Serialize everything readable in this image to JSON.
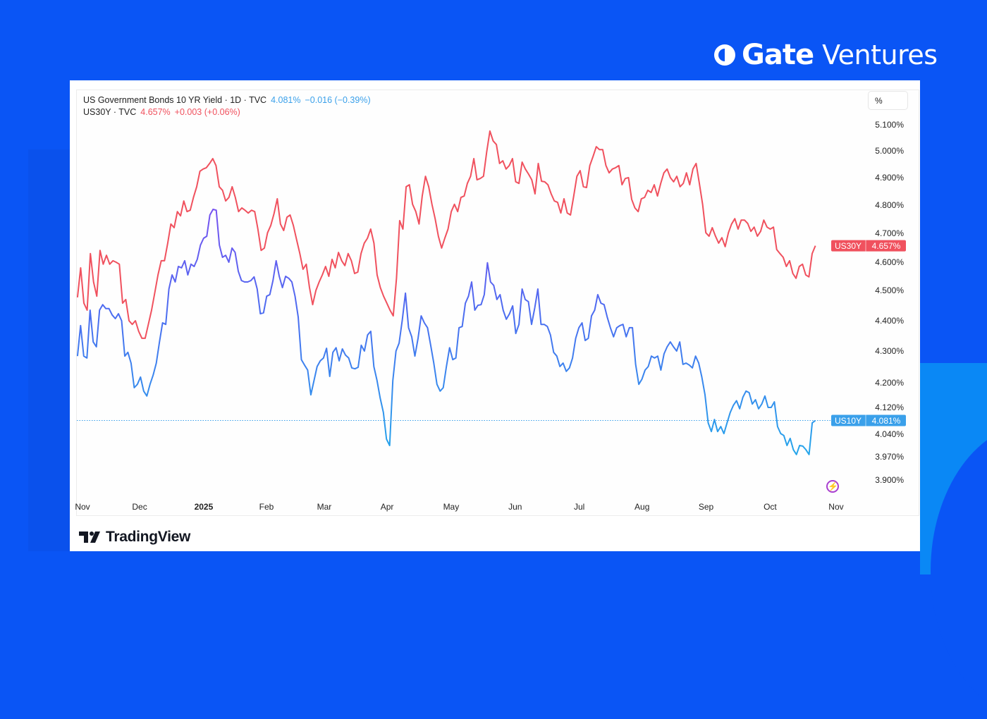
{
  "brand": {
    "name_bold": "Gate",
    "name_light": "Ventures",
    "colors": {
      "background": "#0a55f5",
      "accent_light": "#0a88f5"
    }
  },
  "source": {
    "name": "TradingView"
  },
  "unit_button": "%",
  "legend": [
    {
      "label": "US Government Bonds 10 YR Yield · 1D · TVC",
      "price": "4.081%",
      "change": "−0.016 (−0.39%)",
      "color": "#3aa0ea"
    },
    {
      "label": "US30Y · TVC",
      "price": "4.657%",
      "change": "+0.003 (+0.06%)",
      "color": "#f0515e"
    }
  ],
  "price_tags": [
    {
      "symbol": "US30Y",
      "value": "4.657%",
      "color": "#f0515e"
    },
    {
      "symbol": "US10Y",
      "value": "4.081%",
      "color": "#3aa0ea"
    }
  ],
  "chart_data": {
    "type": "line",
    "title": "US Government Bonds 10 YR Yield vs US30Y",
    "xlabel": "",
    "ylabel": "%",
    "x_unit": "months since Nov 2024",
    "x_range": [
      -0.08,
      11.67
    ],
    "x_ticks": [
      {
        "label": "Nov",
        "t": 0
      },
      {
        "label": "Dec",
        "t": 0.91
      },
      {
        "label": "2025",
        "t": 1.93,
        "bold": true
      },
      {
        "label": "Feb",
        "t": 2.93
      },
      {
        "label": "Mar",
        "t": 3.85
      },
      {
        "label": "Apr",
        "t": 4.85
      },
      {
        "label": "May",
        "t": 5.87
      },
      {
        "label": "Jun",
        "t": 6.89
      },
      {
        "label": "Jul",
        "t": 7.91
      },
      {
        "label": "Aug",
        "t": 8.91
      },
      {
        "label": "Sep",
        "t": 9.93
      },
      {
        "label": "Oct",
        "t": 10.95
      },
      {
        "label": "Nov",
        "t": 12.0
      }
    ],
    "y_ticks": [
      5.1,
      5.0,
      4.9,
      4.8,
      4.7,
      4.6,
      4.5,
      4.4,
      4.3,
      4.2,
      4.12,
      4.04,
      3.97,
      3.9
    ],
    "y_tick_labels": [
      "5.100%",
      "5.000%",
      "4.900%",
      "4.800%",
      "4.700%",
      "4.600%",
      "4.500%",
      "4.400%",
      "4.300%",
      "4.200%",
      "4.120%",
      "4.040%",
      "3.970%",
      "3.900%"
    ],
    "grid": false,
    "series": [
      {
        "name": "US30Y",
        "color": "#f0515e",
        "values": [
          4.477,
          4.58,
          4.458,
          4.435,
          4.63,
          4.53,
          4.481,
          4.641,
          4.593,
          4.624,
          4.593,
          4.605,
          4.6,
          4.593,
          4.458,
          4.47,
          4.4,
          4.388,
          4.4,
          4.365,
          4.342,
          4.342,
          4.388,
          4.435,
          4.493,
          4.555,
          4.605,
          4.605,
          4.666,
          4.733,
          4.72,
          4.777,
          4.762,
          4.815,
          4.777,
          4.782,
          4.828,
          4.867,
          4.924,
          4.932,
          4.937,
          4.953,
          4.971,
          4.945,
          4.867,
          4.854,
          4.815,
          4.828,
          4.867,
          4.828,
          4.777,
          4.79,
          4.782,
          4.772,
          4.782,
          4.777,
          4.715,
          4.641,
          4.649,
          4.702,
          4.728,
          4.77,
          4.823,
          4.733,
          4.71,
          4.757,
          4.765,
          4.728,
          4.678,
          4.63,
          4.575,
          4.593,
          4.51,
          4.453,
          4.5,
          4.53,
          4.555,
          4.585,
          4.55,
          4.61,
          4.58,
          4.634,
          4.605,
          4.588,
          4.63,
          4.605,
          4.56,
          4.565,
          4.63,
          4.666,
          4.683,
          4.715,
          4.666,
          4.555,
          4.51,
          4.481,
          4.458,
          4.435,
          4.416,
          4.543,
          4.745,
          4.715,
          4.867,
          4.874,
          4.803,
          4.777,
          4.733,
          4.833,
          4.905,
          4.867,
          4.803,
          4.752,
          4.69,
          4.649,
          4.683,
          4.715,
          4.777,
          4.803,
          4.777,
          4.828,
          4.833,
          4.879,
          4.905,
          4.971,
          4.892,
          4.897,
          4.905,
          4.997,
          5.076,
          5.038,
          5.024,
          4.953,
          4.963,
          4.932,
          4.945,
          4.971,
          4.885,
          4.879,
          4.958,
          4.932,
          4.913,
          4.892,
          4.841,
          4.953,
          4.887,
          4.885,
          4.874,
          4.841,
          4.815,
          4.81,
          4.772,
          4.823,
          4.772,
          4.765,
          4.833,
          4.905,
          4.926,
          4.867,
          4.864,
          4.945,
          4.979,
          5.016,
          5.005,
          5.005,
          4.945,
          4.918,
          4.932,
          4.937,
          4.945,
          4.874,
          4.897,
          4.9,
          4.821,
          4.79,
          4.777,
          4.823,
          4.828,
          4.854,
          4.846,
          4.874,
          4.833,
          4.879,
          4.918,
          4.932,
          4.9,
          4.885,
          4.905,
          4.867,
          4.879,
          4.918,
          4.874,
          4.932,
          4.953,
          4.879,
          4.803,
          4.702,
          4.69,
          4.72,
          4.69,
          4.666,
          4.685,
          4.654,
          4.702,
          4.733,
          4.752,
          4.715,
          4.747,
          4.747,
          4.735,
          4.707,
          4.722,
          4.69,
          4.707,
          4.747,
          4.722,
          4.715,
          4.722,
          4.644,
          4.63,
          4.617,
          4.585,
          4.605,
          4.56,
          4.543,
          4.585,
          4.593,
          4.555,
          4.548,
          4.63,
          4.657
        ]
      },
      {
        "name": "US10Y",
        "color": "#3aa0ea",
        "gradient": [
          "#7b4ff0",
          "#4a6ef0",
          "#2aa4ea"
        ],
        "values": [
          4.284,
          4.384,
          4.284,
          4.278,
          4.435,
          4.33,
          4.314,
          4.435,
          4.453,
          4.44,
          4.44,
          4.419,
          4.407,
          4.423,
          4.4,
          4.284,
          4.296,
          4.262,
          4.184,
          4.195,
          4.218,
          4.173,
          4.157,
          4.195,
          4.224,
          4.262,
          4.33,
          4.393,
          4.388,
          4.505,
          4.555,
          4.53,
          4.585,
          4.58,
          4.605,
          4.555,
          4.593,
          4.585,
          4.61,
          4.659,
          4.683,
          4.69,
          4.765,
          4.785,
          4.782,
          4.659,
          4.617,
          4.624,
          4.6,
          4.649,
          4.634,
          4.568,
          4.535,
          4.53,
          4.53,
          4.535,
          4.548,
          4.505,
          4.423,
          4.426,
          4.481,
          4.486,
          4.535,
          4.605,
          4.55,
          4.51,
          4.55,
          4.543,
          4.53,
          4.481,
          4.412,
          4.273,
          4.256,
          4.24,
          4.161,
          4.207,
          4.251,
          4.269,
          4.278,
          4.309,
          4.22,
          4.296,
          4.311,
          4.269,
          4.307,
          4.287,
          4.278,
          4.247,
          4.244,
          4.249,
          4.319,
          4.3,
          4.353,
          4.365,
          4.251,
          4.207,
          4.15,
          4.105,
          4.025,
          4.005,
          4.207,
          4.3,
          4.326,
          4.402,
          4.491,
          4.377,
          4.347,
          4.284,
          4.342,
          4.416,
          4.393,
          4.377,
          4.319,
          4.262,
          4.195,
          4.173,
          4.184,
          4.251,
          4.311,
          4.273,
          4.278,
          4.377,
          4.381,
          4.458,
          4.481,
          4.53,
          4.435,
          4.451,
          4.453,
          4.486,
          4.598,
          4.53,
          4.518,
          4.47,
          4.486,
          4.435,
          4.405,
          4.423,
          4.449,
          4.358,
          4.388,
          4.505,
          4.47,
          4.463,
          4.388,
          4.442,
          4.505,
          4.388,
          4.388,
          4.381,
          4.353,
          4.296,
          4.284,
          4.251,
          4.262,
          4.236,
          4.247,
          4.278,
          4.342,
          4.377,
          4.393,
          4.335,
          4.342,
          4.416,
          4.435,
          4.486,
          4.458,
          4.453,
          4.412,
          4.377,
          4.347,
          4.377,
          4.384,
          4.388,
          4.347,
          4.377,
          4.377,
          4.258,
          4.195,
          4.211,
          4.24,
          4.251,
          4.284,
          4.278,
          4.284,
          4.24,
          4.291,
          4.314,
          4.33,
          4.314,
          4.3,
          4.33,
          4.258,
          4.262,
          4.256,
          4.247,
          4.284,
          4.262,
          4.218,
          4.161,
          4.074,
          4.048,
          4.084,
          4.048,
          4.063,
          4.042,
          4.074,
          4.105,
          4.127,
          4.142,
          4.116,
          4.153,
          4.173,
          4.168,
          4.131,
          4.145,
          4.116,
          4.131,
          4.157,
          4.12,
          4.12,
          4.138,
          4.063,
          4.042,
          4.036,
          4.005,
          4.027,
          3.992,
          3.977,
          4.005,
          4.003,
          3.992,
          3.977,
          4.074,
          4.081
        ]
      }
    ],
    "last_value_line": {
      "series": "US10Y",
      "value": 4.081
    },
    "legend_position": "top-left"
  }
}
